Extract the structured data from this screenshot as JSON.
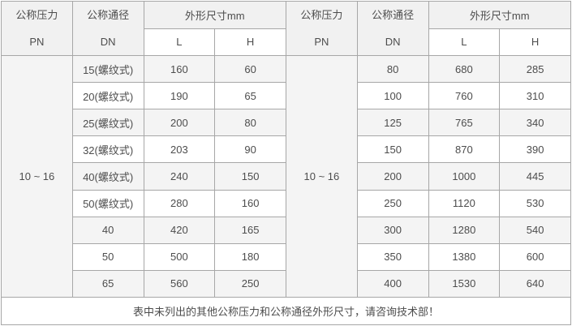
{
  "header": {
    "pressure_label": "公称压力",
    "pressure_sub": "PN",
    "diameter_label": "公称通径",
    "diameter_sub": "DN",
    "dims_label": "外形尺寸mm",
    "l_label": "L",
    "h_label": "H"
  },
  "left_table": {
    "pn": "10 ~ 16",
    "rows": [
      {
        "dn": "15(螺纹式)",
        "l": "160",
        "h": "60"
      },
      {
        "dn": "20(螺纹式)",
        "l": "190",
        "h": "65"
      },
      {
        "dn": "25(螺纹式)",
        "l": "200",
        "h": "80"
      },
      {
        "dn": "32(螺纹式)",
        "l": "203",
        "h": "90"
      },
      {
        "dn": "40(螺纹式)",
        "l": "240",
        "h": "150"
      },
      {
        "dn": "50(螺纹式)",
        "l": "280",
        "h": "160"
      },
      {
        "dn": "40",
        "l": "420",
        "h": "165"
      },
      {
        "dn": "50",
        "l": "500",
        "h": "180"
      },
      {
        "dn": "65",
        "l": "560",
        "h": "250"
      }
    ]
  },
  "right_table": {
    "pn": "10 ~ 16",
    "rows": [
      {
        "dn": "80",
        "l": "680",
        "h": "285"
      },
      {
        "dn": "100",
        "l": "760",
        "h": "310"
      },
      {
        "dn": "125",
        "l": "765",
        "h": "340"
      },
      {
        "dn": "150",
        "l": "870",
        "h": "390"
      },
      {
        "dn": "200",
        "l": "1000",
        "h": "445"
      },
      {
        "dn": "250",
        "l": "1120",
        "h": "530"
      },
      {
        "dn": "300",
        "l": "1280",
        "h": "540"
      },
      {
        "dn": "350",
        "l": "1380",
        "h": "600"
      },
      {
        "dn": "400",
        "l": "1530",
        "h": "640"
      }
    ]
  },
  "footer": {
    "note": "表中未列出的其他公称压力和公称通径外形尺寸，请咨询技术部！"
  },
  "colors": {
    "header_bg": "#f1f1f1",
    "stripe_bg": "#f4f4f4",
    "border": "#a7a7a7",
    "text": "#4d4d4d"
  }
}
